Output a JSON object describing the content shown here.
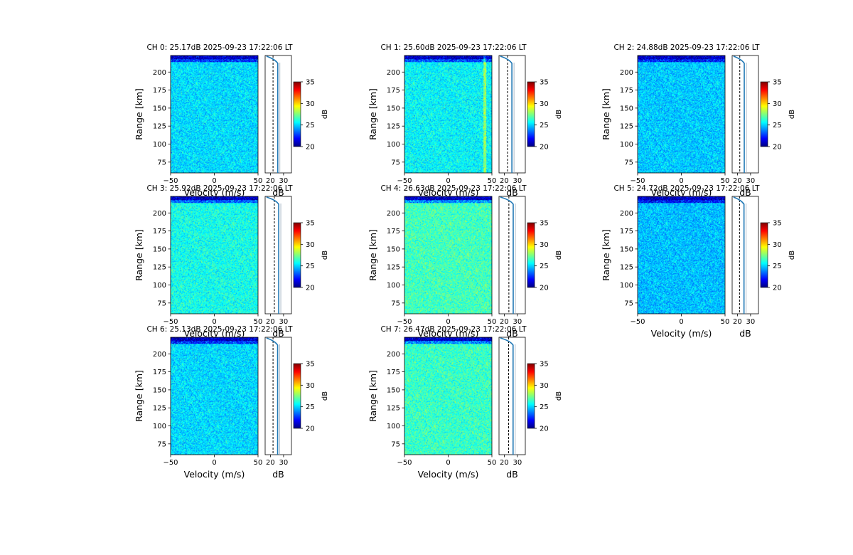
{
  "figure": {
    "colorbar_label": "dB",
    "color_scale": {
      "colormap": "jet",
      "range": [
        20,
        35
      ],
      "stops": [
        "#00007f",
        "#0000ff",
        "#007fff",
        "#00ffff",
        "#7fff7f",
        "#ffff00",
        "#ff7f00",
        "#ff0000",
        "#7f0000"
      ]
    }
  },
  "chart_data": [
    {
      "type": "heatmap",
      "channel": 0,
      "title": "CH 0: 25.17dB 2025-09-23 17:22:06 LT",
      "xlabel": "Velocity (m/s)",
      "ylabel": "Range [km]",
      "xlim": [
        -50,
        50
      ],
      "ylim": [
        60,
        223
      ],
      "xticks": [
        "−50",
        "0",
        "50"
      ],
      "yticks": [
        "75",
        "100",
        "125",
        "150",
        "175",
        "200"
      ],
      "mean_db": 25.17,
      "profile": {
        "xlabel": "dB",
        "xlim": [
          16,
          36
        ],
        "xticks": [
          "20",
          "30"
        ],
        "noise_level_db": 22.0,
        "line_db": 25.6
      },
      "colorbar": {
        "label": "dB",
        "ticks": [
          "20",
          "25",
          "30",
          "35"
        ],
        "range": [
          20,
          35
        ]
      }
    },
    {
      "type": "heatmap",
      "channel": 1,
      "title": "CH 1: 25.60dB 2025-09-23 17:22:06 LT",
      "xlabel": "Velocity (m/s)",
      "ylabel": "Range [km]",
      "xlim": [
        -50,
        50
      ],
      "ylim": [
        60,
        223
      ],
      "xticks": [
        "−50",
        "0",
        "50"
      ],
      "yticks": [
        "75",
        "100",
        "125",
        "150",
        "175",
        "200"
      ],
      "mean_db": 25.6,
      "profile": {
        "xlabel": "dB",
        "xlim": [
          16,
          36
        ],
        "xticks": [
          "20",
          "30"
        ],
        "noise_level_db": 22.5,
        "line_db": 25.8
      },
      "colorbar": {
        "label": "dB",
        "ticks": [
          "20",
          "25",
          "30",
          "35"
        ],
        "range": [
          20,
          35
        ]
      }
    },
    {
      "type": "heatmap",
      "channel": 2,
      "title": "CH 2: 24.88dB 2025-09-23 17:22:06 LT",
      "xlabel": "Velocity (m/s)",
      "ylabel": "Range [km]",
      "xlim": [
        -50,
        50
      ],
      "ylim": [
        60,
        223
      ],
      "xticks": [
        "−50",
        "0",
        "50"
      ],
      "yticks": [
        "75",
        "100",
        "125",
        "150",
        "175",
        "200"
      ],
      "mean_db": 24.88,
      "profile": {
        "xlabel": "dB",
        "xlim": [
          16,
          36
        ],
        "xticks": [
          "20",
          "30"
        ],
        "noise_level_db": 21.8,
        "line_db": 25.2
      },
      "colorbar": {
        "label": "dB",
        "ticks": [
          "20",
          "25",
          "30",
          "35"
        ],
        "range": [
          20,
          35
        ]
      }
    },
    {
      "type": "heatmap",
      "channel": 3,
      "title": "CH 3: 25.92dB 2025-09-23 17:22:06 LT",
      "xlabel": "Velocity (m/s)",
      "ylabel": "Range [km]",
      "xlim": [
        -50,
        50
      ],
      "ylim": [
        60,
        223
      ],
      "xticks": [
        "−50",
        "0",
        "50"
      ],
      "yticks": [
        "75",
        "100",
        "125",
        "150",
        "175",
        "200"
      ],
      "mean_db": 25.92,
      "profile": {
        "xlabel": "dB",
        "xlim": [
          16,
          36
        ],
        "xticks": [
          "20",
          "30"
        ],
        "noise_level_db": 23.0,
        "line_db": 26.3
      },
      "colorbar": {
        "label": "dB",
        "ticks": [
          "20",
          "25",
          "30",
          "35"
        ],
        "range": [
          20,
          35
        ]
      }
    },
    {
      "type": "heatmap",
      "channel": 4,
      "title": "CH 4: 26.63dB 2025-09-23 17:22:06 LT",
      "xlabel": "Velocity (m/s)",
      "ylabel": "Range [km]",
      "xlim": [
        -50,
        50
      ],
      "ylim": [
        60,
        223
      ],
      "xticks": [
        "−50",
        "0",
        "50"
      ],
      "yticks": [
        "75",
        "100",
        "125",
        "150",
        "175",
        "200"
      ],
      "mean_db": 26.63,
      "profile": {
        "xlabel": "dB",
        "xlim": [
          16,
          36
        ],
        "xticks": [
          "20",
          "30"
        ],
        "noise_level_db": 23.5,
        "line_db": 26.8
      },
      "colorbar": {
        "label": "dB",
        "ticks": [
          "20",
          "25",
          "30",
          "35"
        ],
        "range": [
          20,
          35
        ]
      }
    },
    {
      "type": "heatmap",
      "channel": 5,
      "title": "CH 5: 24.72dB 2025-09-23 17:22:06 LT",
      "xlabel": "Velocity (m/s)",
      "ylabel": "Range [km]",
      "xlim": [
        -50,
        50
      ],
      "ylim": [
        60,
        223
      ],
      "xticks": [
        "−50",
        "0",
        "50"
      ],
      "yticks": [
        "75",
        "100",
        "125",
        "150",
        "175",
        "200"
      ],
      "mean_db": 24.72,
      "profile": {
        "xlabel": "dB",
        "xlim": [
          16,
          36
        ],
        "xticks": [
          "20",
          "30"
        ],
        "noise_level_db": 21.6,
        "line_db": 25.0
      },
      "colorbar": {
        "label": "dB",
        "ticks": [
          "20",
          "25",
          "30",
          "35"
        ],
        "range": [
          20,
          35
        ]
      }
    },
    {
      "type": "heatmap",
      "channel": 6,
      "title": "CH 6: 25.13dB 2025-09-23 17:22:06 LT",
      "xlabel": "Velocity (m/s)",
      "ylabel": "Range [km]",
      "xlim": [
        -50,
        50
      ],
      "ylim": [
        60,
        223
      ],
      "xticks": [
        "−50",
        "0",
        "50"
      ],
      "yticks": [
        "75",
        "100",
        "125",
        "150",
        "175",
        "200"
      ],
      "mean_db": 25.13,
      "profile": {
        "xlabel": "dB",
        "xlim": [
          16,
          36
        ],
        "xticks": [
          "20",
          "30"
        ],
        "noise_level_db": 22.0,
        "line_db": 25.5
      },
      "colorbar": {
        "label": "dB",
        "ticks": [
          "20",
          "25",
          "30",
          "35"
        ],
        "range": [
          20,
          35
        ]
      }
    },
    {
      "type": "heatmap",
      "channel": 7,
      "title": "CH 7: 26.47dB 2025-09-23 17:22:06 LT",
      "xlabel": "Velocity (m/s)",
      "ylabel": "Range [km]",
      "xlim": [
        -50,
        50
      ],
      "ylim": [
        60,
        223
      ],
      "xticks": [
        "−50",
        "0",
        "50"
      ],
      "yticks": [
        "75",
        "100",
        "125",
        "150",
        "175",
        "200"
      ],
      "mean_db": 26.47,
      "profile": {
        "xlabel": "dB",
        "xlim": [
          16,
          36
        ],
        "xticks": [
          "20",
          "30"
        ],
        "noise_level_db": 23.3,
        "line_db": 26.7
      },
      "colorbar": {
        "label": "dB",
        "ticks": [
          "20",
          "25",
          "30",
          "35"
        ],
        "range": [
          20,
          35
        ]
      }
    }
  ]
}
